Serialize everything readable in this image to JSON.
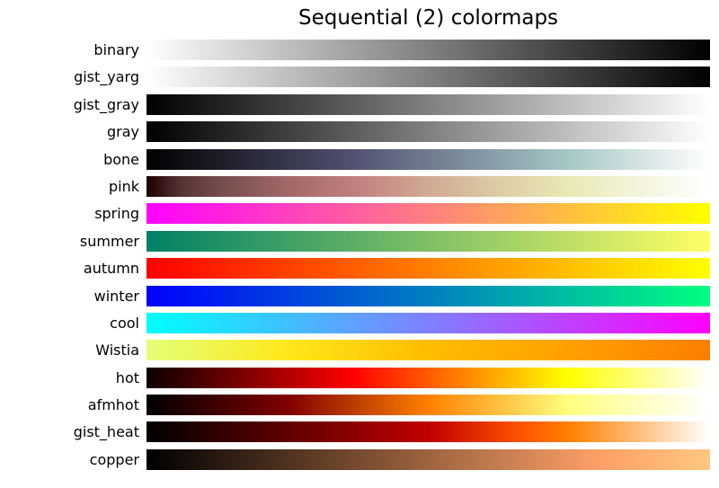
{
  "title": "Sequential (2) colormaps",
  "background_color": "#ffffff",
  "text_color": "#000000",
  "chart_data": {
    "type": "heatmap",
    "title": "Sequential (2) colormaps",
    "x_range": [
      0,
      1
    ],
    "orientation": "horizontal-gradient-strips",
    "categories": [
      "binary",
      "gist_yarg",
      "gist_gray",
      "gray",
      "bone",
      "pink",
      "spring",
      "summer",
      "autumn",
      "winter",
      "cool",
      "Wistia",
      "hot",
      "afmhot",
      "gist_heat",
      "copper"
    ],
    "rows": [
      {
        "name": "binary",
        "stops": [
          {
            "p": 0,
            "c": "#ffffff"
          },
          {
            "p": 100,
            "c": "#000000"
          }
        ]
      },
      {
        "name": "gist_yarg",
        "stops": [
          {
            "p": 0,
            "c": "#ffffff"
          },
          {
            "p": 100,
            "c": "#000000"
          }
        ]
      },
      {
        "name": "gist_gray",
        "stops": [
          {
            "p": 0,
            "c": "#000000"
          },
          {
            "p": 100,
            "c": "#ffffff"
          }
        ]
      },
      {
        "name": "gray",
        "stops": [
          {
            "p": 0,
            "c": "#000000"
          },
          {
            "p": 100,
            "c": "#ffffff"
          }
        ]
      },
      {
        "name": "bone",
        "stops": [
          {
            "p": 0,
            "c": "#000000"
          },
          {
            "p": 36.5,
            "c": "#515171"
          },
          {
            "p": 74.6,
            "c": "#a6c6c6"
          },
          {
            "p": 100,
            "c": "#ffffff"
          }
        ]
      },
      {
        "name": "pink",
        "stops": [
          {
            "p": 0,
            "c": "#1e0000"
          },
          {
            "p": 6.25,
            "c": "#553434"
          },
          {
            "p": 12.5,
            "c": "#734a4a"
          },
          {
            "p": 25,
            "c": "#a16868"
          },
          {
            "p": 37.5,
            "c": "#c38080"
          },
          {
            "p": 50,
            "c": "#d0aa93"
          },
          {
            "p": 62.5,
            "c": "#ddcca5"
          },
          {
            "p": 75,
            "c": "#e9e9b4"
          },
          {
            "p": 87.5,
            "c": "#f4f4dd"
          },
          {
            "p": 100,
            "c": "#ffffff"
          }
        ]
      },
      {
        "name": "spring",
        "stops": [
          {
            "p": 0,
            "c": "#ff00ff"
          },
          {
            "p": 100,
            "c": "#ffff00"
          }
        ]
      },
      {
        "name": "summer",
        "stops": [
          {
            "p": 0,
            "c": "#008066"
          },
          {
            "p": 100,
            "c": "#ffff66"
          }
        ]
      },
      {
        "name": "autumn",
        "stops": [
          {
            "p": 0,
            "c": "#ff0000"
          },
          {
            "p": 100,
            "c": "#ffff00"
          }
        ]
      },
      {
        "name": "winter",
        "stops": [
          {
            "p": 0,
            "c": "#0000ff"
          },
          {
            "p": 100,
            "c": "#00ff80"
          }
        ]
      },
      {
        "name": "cool",
        "stops": [
          {
            "p": 0,
            "c": "#00ffff"
          },
          {
            "p": 100,
            "c": "#ff00ff"
          }
        ]
      },
      {
        "name": "Wistia",
        "stops": [
          {
            "p": 0,
            "c": "#e4ff7a"
          },
          {
            "p": 25,
            "c": "#ffe81a"
          },
          {
            "p": 50,
            "c": "#ffbd00"
          },
          {
            "p": 75,
            "c": "#ffa000"
          },
          {
            "p": 100,
            "c": "#fc7f00"
          }
        ]
      },
      {
        "name": "hot",
        "stops": [
          {
            "p": 0,
            "c": "#0b0000"
          },
          {
            "p": 36.5,
            "c": "#ff0000"
          },
          {
            "p": 74.6,
            "c": "#ffff00"
          },
          {
            "p": 100,
            "c": "#ffffff"
          }
        ]
      },
      {
        "name": "afmhot",
        "stops": [
          {
            "p": 0,
            "c": "#000000"
          },
          {
            "p": 25,
            "c": "#800000"
          },
          {
            "p": 50,
            "c": "#ff8000"
          },
          {
            "p": 75,
            "c": "#ffff80"
          },
          {
            "p": 100,
            "c": "#ffffff"
          }
        ]
      },
      {
        "name": "gist_heat",
        "stops": [
          {
            "p": 0,
            "c": "#000000"
          },
          {
            "p": 50,
            "c": "#bf0000"
          },
          {
            "p": 66.7,
            "c": "#ff5500"
          },
          {
            "p": 75,
            "c": "#ff8000"
          },
          {
            "p": 100,
            "c": "#ffffff"
          }
        ]
      },
      {
        "name": "copper",
        "stops": [
          {
            "p": 0,
            "c": "#000000"
          },
          {
            "p": 81,
            "c": "#ffa167"
          },
          {
            "p": 100,
            "c": "#ffc77f"
          }
        ]
      }
    ]
  }
}
